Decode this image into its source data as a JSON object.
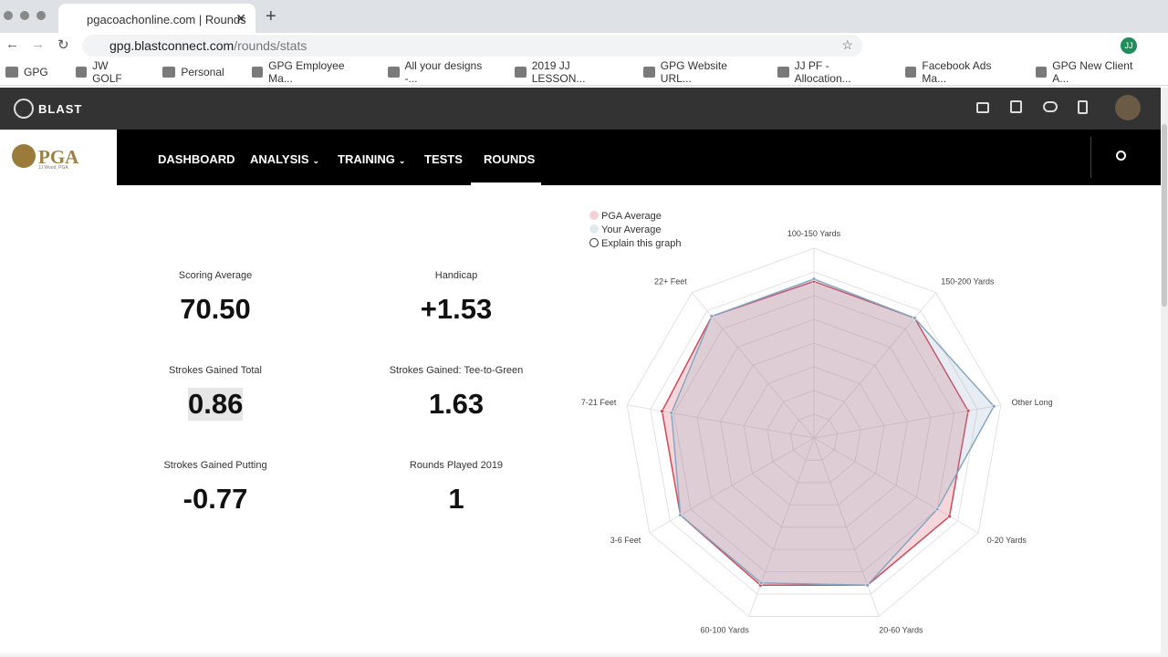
{
  "browser": {
    "tab_title": "pgacoachonline.com | Rounds",
    "url_host": "gpg.blastconnect.com",
    "url_path": "/rounds/stats",
    "profile_initials": "JJ",
    "bookmarks": [
      "GPG",
      "JW GOLF",
      "Personal",
      "GPG Employee Ma...",
      "All your designs -...",
      "2019 JJ LESSON...",
      "GPG Website URL...",
      "JJ PF - Allocation...",
      "Facebook Ads Ma...",
      "GPG New Client A..."
    ]
  },
  "site": {
    "brand": "BLAST",
    "logo_text": "PGA",
    "logo_subtext": "JJ Wood, PGA",
    "nav": [
      {
        "label": "DASHBOARD",
        "dropdown": false,
        "active": false
      },
      {
        "label": "ANALYSIS",
        "dropdown": true,
        "active": false
      },
      {
        "label": "TRAINING",
        "dropdown": true,
        "active": false
      },
      {
        "label": "TESTS",
        "dropdown": false,
        "active": false
      },
      {
        "label": "ROUNDS",
        "dropdown": false,
        "active": true
      }
    ]
  },
  "stats": [
    {
      "label": "Scoring Average",
      "value": "70.50"
    },
    {
      "label": "Handicap",
      "value": "+1.53"
    },
    {
      "label": "Strokes Gained Total",
      "value": "0.86"
    },
    {
      "label": "Strokes Gained: Tee-to-Green",
      "value": "1.63"
    },
    {
      "label": "Strokes Gained Putting",
      "value": "-0.77"
    },
    {
      "label": "Rounds Played 2019",
      "value": "1"
    }
  ],
  "explain_link": "Explain this graph",
  "chart_data": {
    "type": "radar",
    "categories": [
      "100-150 Yards",
      "150-200 Yards",
      "Other Long",
      "0-20 Yards",
      "20-60 Yards",
      "60-100 Yards",
      "3-6 Feet",
      "7-21 Feet",
      "22+ Feet"
    ],
    "series": [
      {
        "name": "PGA Average",
        "color": "#d0485a",
        "values": [
          6.6,
          6.6,
          6.6,
          6.6,
          6.6,
          6.6,
          6.5,
          6.5,
          6.7
        ]
      },
      {
        "name": "Your Average",
        "color": "#86a7c3",
        "values": [
          6.7,
          6.6,
          7.7,
          6.0,
          6.6,
          6.5,
          6.5,
          6.1,
          6.7
        ]
      }
    ],
    "rlim": [
      0,
      8
    ],
    "rticks": [
      1,
      2,
      3,
      4,
      5,
      6,
      7,
      8
    ],
    "grid": true
  }
}
